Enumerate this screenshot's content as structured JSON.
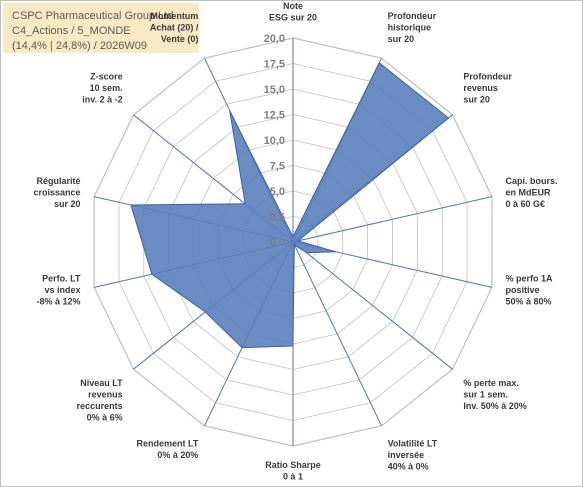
{
  "title": {
    "line1": "CSPC Pharmaceutical Group Ltd",
    "line2": "C4_Actions / 5_MONDE",
    "line3": "(14,4% | 24,8%) / 2026W09"
  },
  "colors": {
    "fill": "#5b80bc",
    "stroke": "#3f62a0",
    "grid": "#bfbfbf",
    "axis": "#4a76c4",
    "title_bg": "#fbe9c4"
  },
  "chart_data": {
    "type": "radar",
    "ylim": [
      0,
      20
    ],
    "tick_step": 2.5,
    "tick_labels": [
      "0,0",
      "2,5",
      "5,0",
      "7,5",
      "10,0",
      "12,5",
      "15,0",
      "17,5",
      "20,0"
    ],
    "categories": [
      [
        "Note",
        "ESG sur 20"
      ],
      [
        "Profondeur",
        "historique",
        "sur 20"
      ],
      [
        "Profondeur",
        "revenus",
        "sur 20"
      ],
      [
        "Capi. bours.",
        "en MdEUR",
        "0 à 60 G€"
      ],
      [
        "% perfo 1A",
        "positive",
        "50% à 80%"
      ],
      [
        "% perte max.",
        "sur 1 sem.",
        "Inv. 50% à 20%"
      ],
      [
        "Volatilité LT",
        "inversée",
        "40% à 0%"
      ],
      [
        "Ratio Sharpe",
        "0 à 1"
      ],
      [
        "Rendement LT",
        "0% à 20%"
      ],
      [
        "Niveau LT",
        "revenus",
        "reccurents",
        "0% à 6%"
      ],
      [
        "Perfo. LT",
        "vs index",
        "-8% à 12%"
      ],
      [
        "Régularité",
        "croissance",
        "sur 20"
      ],
      [
        "Z-score",
        "10 sem.",
        "inv. 2 à -2"
      ],
      [
        "Momentum",
        "Achat (20) /",
        "Vente (0)"
      ]
    ],
    "series": [
      {
        "values": [
          0.5,
          19.5,
          19.5,
          0.5,
          4.3,
          1.7,
          0.3,
          10.2,
          11.5,
          11.0,
          14.2,
          16.3,
          6.0,
          14.3
        ]
      }
    ]
  }
}
